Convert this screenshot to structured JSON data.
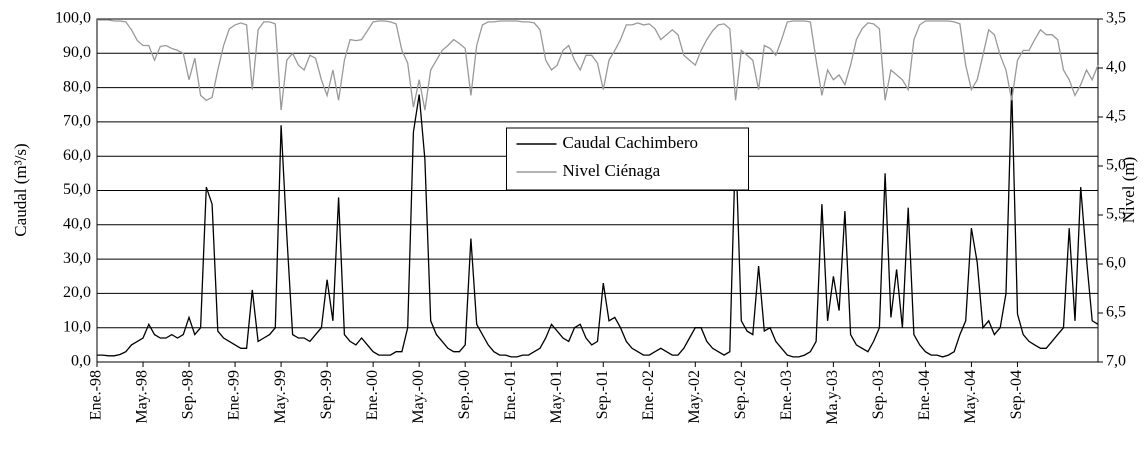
{
  "chart_data": {
    "type": "line",
    "x": [
      0,
      0.5,
      1,
      1.5,
      2,
      2.5,
      3,
      3.5,
      4,
      4.5,
      5,
      5.5,
      6,
      6.5,
      7,
      7.5,
      8,
      8.5,
      9,
      9.5,
      10,
      10.5,
      11,
      11.5,
      12,
      12.5,
      13,
      13.5,
      14,
      14.5,
      15,
      15.5,
      16,
      16.5,
      17,
      17.5,
      18,
      18.5,
      19,
      19.5,
      20,
      20.5,
      21,
      21.5,
      22,
      22.5,
      23,
      23.5,
      24,
      24.5,
      25,
      25.5,
      26,
      26.5,
      27,
      27.5,
      28,
      28.5,
      29,
      29.5,
      30,
      30.5,
      31,
      31.5,
      32,
      32.5,
      33,
      33.5,
      34,
      34.5,
      35,
      35.5,
      36,
      36.5,
      37,
      37.5,
      38,
      38.5,
      39,
      39.5,
      40,
      40.5,
      41,
      41.5,
      42,
      42.5,
      43,
      43.5,
      44,
      44.5,
      45,
      45.5,
      46,
      46.5,
      47,
      47.5,
      48,
      48.5,
      49,
      49.5,
      50,
      50.5,
      51,
      51.5,
      52,
      52.5,
      53,
      53.5,
      54,
      54.5,
      55,
      55.5,
      56,
      56.5,
      57,
      57.5,
      58,
      58.5,
      59,
      59.5,
      60,
      60.5,
      61,
      61.5,
      62,
      62.5,
      63,
      63.5,
      64,
      64.5,
      65,
      65.5,
      66,
      66.5,
      67,
      67.5,
      68,
      68.5,
      69,
      69.5,
      70,
      70.5,
      71,
      71.5,
      72,
      72.5,
      73,
      73.5,
      74,
      74.5,
      75,
      75.5,
      76,
      76.5,
      77,
      77.5,
      78,
      78.5,
      79,
      79.5,
      80,
      80.5,
      81,
      81.5,
      82,
      82.5,
      83,
      83.5,
      84,
      84.5,
      85,
      85.5,
      86,
      86.5,
      87
    ],
    "series": [
      {
        "name": "Caudal Cachimbero",
        "color": "#000000",
        "values": [
          2,
          2,
          1.8,
          1.8,
          2.2,
          3,
          5,
          6,
          7,
          11,
          8,
          7,
          7,
          8,
          7,
          8,
          13,
          8,
          10,
          51,
          46,
          9,
          7,
          6,
          5,
          4,
          4,
          21,
          6,
          7,
          8,
          10,
          69,
          37,
          8,
          7,
          7,
          6,
          8,
          10,
          24,
          12,
          48,
          8,
          6,
          5,
          7,
          5,
          3,
          2,
          2,
          2,
          3,
          3,
          10,
          67,
          78,
          59,
          12,
          8,
          6,
          4,
          3,
          3,
          5,
          36,
          11,
          8,
          5,
          3,
          2,
          2,
          1.5,
          1.5,
          2,
          2,
          3,
          4,
          7,
          11,
          9,
          7,
          6,
          10,
          11,
          7,
          5,
          6,
          23,
          12,
          13,
          10,
          6,
          4,
          3,
          2,
          2,
          3,
          4,
          3,
          2,
          2,
          4,
          7,
          10,
          10,
          6,
          4,
          3,
          2,
          3,
          64,
          12,
          9,
          8,
          28,
          9,
          10,
          6,
          4,
          2,
          1.5,
          1.5,
          2,
          3,
          6,
          46,
          12,
          25,
          15,
          44,
          8,
          5,
          4,
          3,
          6,
          10,
          55,
          13,
          27,
          10,
          45,
          8,
          5,
          3,
          2,
          2,
          1.5,
          2,
          3,
          8,
          12,
          39,
          29,
          10,
          12,
          8,
          10,
          20,
          80,
          14,
          8,
          6,
          5,
          4,
          4,
          6,
          8,
          10,
          39,
          12,
          51,
          30,
          12,
          11
        ]
      },
      {
        "name": "Nivel Ciénaga",
        "color": "#999999",
        "axis": "y2",
        "values": [
          3.51,
          3.51,
          3.51,
          3.52,
          3.52,
          3.53,
          3.61,
          3.72,
          3.77,
          3.77,
          3.92,
          3.78,
          3.77,
          3.8,
          3.82,
          3.85,
          4.12,
          3.9,
          4.28,
          4.33,
          4.3,
          4.02,
          3.77,
          3.6,
          3.56,
          3.54,
          3.56,
          4.22,
          3.61,
          3.53,
          3.53,
          3.55,
          4.43,
          3.92,
          3.85,
          3.97,
          4.02,
          3.87,
          3.9,
          4.12,
          4.28,
          4.02,
          4.33,
          3.92,
          3.71,
          3.72,
          3.71,
          3.62,
          3.53,
          3.52,
          3.52,
          3.53,
          3.55,
          3.82,
          3.95,
          4.4,
          4.12,
          4.43,
          4.02,
          3.92,
          3.82,
          3.77,
          3.71,
          3.75,
          3.8,
          4.28,
          3.77,
          3.56,
          3.53,
          3.53,
          3.52,
          3.52,
          3.52,
          3.52,
          3.53,
          3.53,
          3.54,
          3.61,
          3.92,
          4.02,
          3.97,
          3.82,
          3.77,
          3.92,
          4.02,
          3.87,
          3.87,
          3.95,
          4.22,
          3.92,
          3.82,
          3.71,
          3.56,
          3.56,
          3.54,
          3.56,
          3.55,
          3.6,
          3.71,
          3.66,
          3.61,
          3.66,
          3.87,
          3.92,
          3.97,
          3.82,
          3.71,
          3.62,
          3.56,
          3.55,
          3.6,
          4.33,
          3.82,
          3.87,
          3.92,
          4.22,
          3.77,
          3.8,
          3.87,
          3.71,
          3.53,
          3.52,
          3.52,
          3.52,
          3.53,
          3.92,
          4.28,
          4.02,
          4.12,
          4.07,
          4.17,
          3.97,
          3.71,
          3.6,
          3.54,
          3.55,
          3.6,
          4.33,
          4.02,
          4.07,
          4.12,
          4.22,
          3.71,
          3.56,
          3.52,
          3.52,
          3.52,
          3.52,
          3.52,
          3.53,
          3.55,
          3.97,
          4.22,
          4.12,
          3.87,
          3.61,
          3.66,
          3.87,
          4.02,
          4.33,
          3.92,
          3.82,
          3.82,
          3.71,
          3.61,
          3.66,
          3.66,
          3.71,
          4.02,
          4.12,
          4.28,
          4.17,
          4.02,
          4.12,
          3.97
        ]
      }
    ],
    "xlim": [
      0,
      87
    ],
    "xticks": [
      {
        "value": 0,
        "label": "Ene.-98"
      },
      {
        "value": 4,
        "label": "May.-98"
      },
      {
        "value": 8,
        "label": "Sep.-98"
      },
      {
        "value": 12,
        "label": "Ene.-99"
      },
      {
        "value": 16,
        "label": "May.-99"
      },
      {
        "value": 20,
        "label": "Sep.-99"
      },
      {
        "value": 24,
        "label": "Ene.-00"
      },
      {
        "value": 28,
        "label": "May.-00"
      },
      {
        "value": 32,
        "label": "Sep.-00"
      },
      {
        "value": 36,
        "label": "Ene.-01"
      },
      {
        "value": 40,
        "label": "May.-01"
      },
      {
        "value": 44,
        "label": "Sep.-01"
      },
      {
        "value": 48,
        "label": "Ene.-02"
      },
      {
        "value": 52,
        "label": "May.-02"
      },
      {
        "value": 56,
        "label": "Sep.-02"
      },
      {
        "value": 60,
        "label": "Ene.-03"
      },
      {
        "value": 64,
        "label": "Ma.y-03"
      },
      {
        "value": 68,
        "label": "Sep.-03"
      },
      {
        "value": 72,
        "label": "Ene.-04"
      },
      {
        "value": 76,
        "label": "May.-04"
      },
      {
        "value": 80,
        "label": "Sep.-04"
      }
    ],
    "ylim": [
      0,
      100
    ],
    "yticks": [
      {
        "value": 0,
        "label": "0,0"
      },
      {
        "value": 10,
        "label": "10,0"
      },
      {
        "value": 20,
        "label": "20,0"
      },
      {
        "value": 30,
        "label": "30,0"
      },
      {
        "value": 40,
        "label": "40,0"
      },
      {
        "value": 50,
        "label": "50,0"
      },
      {
        "value": 60,
        "label": "60,0"
      },
      {
        "value": 70,
        "label": "70,0"
      },
      {
        "value": 80,
        "label": "80,0"
      },
      {
        "value": 90,
        "label": "90,0"
      },
      {
        "value": 100,
        "label": "100,0"
      }
    ],
    "y2lim": [
      7,
      3.5
    ],
    "y2ticks": [
      {
        "value": 3.5,
        "label": "3,5"
      },
      {
        "value": 4,
        "label": "4,0"
      },
      {
        "value": 4.5,
        "label": "4,5"
      },
      {
        "value": 5,
        "label": "5,0"
      },
      {
        "value": 5.5,
        "label": "5,5"
      },
      {
        "value": 6,
        "label": "6,0"
      },
      {
        "value": 6.5,
        "label": "6,5"
      },
      {
        "value": 7,
        "label": "7,0"
      }
    ],
    "ylabel": "Caudal (m³/s)",
    "y2label": "Nivel (m)",
    "grid": true,
    "legend": "center"
  }
}
